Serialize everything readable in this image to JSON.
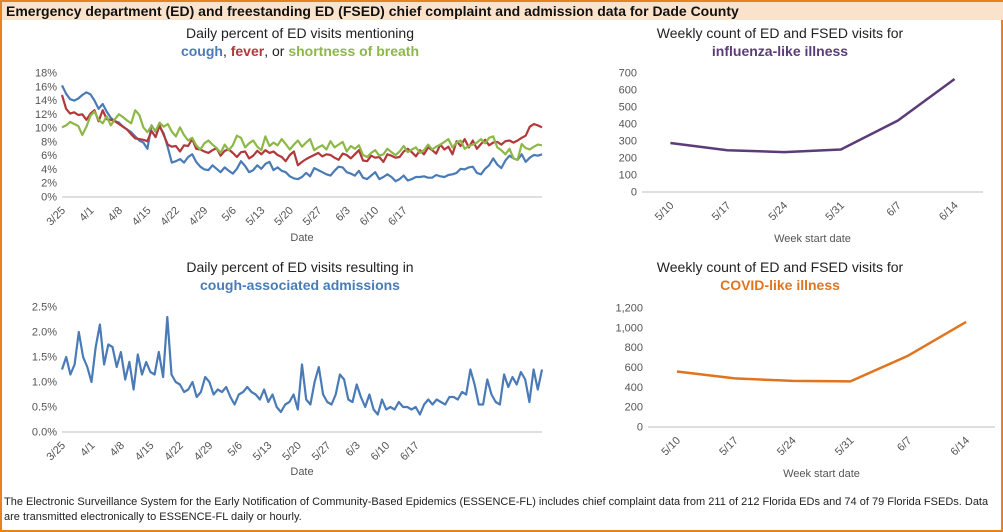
{
  "header": {
    "title": "Emergency department (ED) and freestanding ED (FSED) chief complaint and admission data for Dade County"
  },
  "colors": {
    "accent_border": "#e8821f",
    "header_bg": "#fbe3cb",
    "cough": "#4a7bb7",
    "fever": "#b2383a",
    "sob": "#8db848",
    "influenza": "#5b3c78",
    "covid": "#e1741f"
  },
  "footer": {
    "text": "The Electronic Surveillance System for the Early Notification of Community-Based Epidemics (ESSENCE-FL) includes chief complaint data from 211 of 212 Florida EDs and 74 of 79 Florida FSEDs. Data are transmitted electronically to ESSENCE-FL daily or hourly."
  },
  "chart_data": [
    {
      "type": "line",
      "title": "Daily percent of ED visits mentioning",
      "legend_title": {
        "cough": "cough",
        "sep1": ", ",
        "fever": "fever",
        "sep2": ", or ",
        "sob": "shortness of breath"
      },
      "xlabel": "Date",
      "ylabel": "",
      "x_tick_labels": [
        "3/25",
        "4/1",
        "4/8",
        "4/15",
        "4/22",
        "4/29",
        "5/6",
        "5/13",
        "5/20",
        "5/27",
        "6/3",
        "6/10",
        "6/17"
      ],
      "y_tick_labels": [
        "0%",
        "2%",
        "4%",
        "6%",
        "8%",
        "10%",
        "12%",
        "14%",
        "16%",
        "18%"
      ],
      "ylim": [
        0,
        18
      ],
      "series": [
        {
          "name": "cough",
          "color": "#4a7bb7",
          "values": [
            16.2,
            15.0,
            14.2,
            14.0,
            14.3,
            14.8,
            15.2,
            14.9,
            14.0,
            12.8,
            13.5,
            12.4,
            11.5,
            11.0,
            10.8,
            10.2,
            9.8,
            9.4,
            8.8,
            8.2,
            7.9,
            7.0,
            10.4,
            9.5,
            10.2,
            9.2,
            7.2,
            5.0,
            5.2,
            5.5,
            5.0,
            5.8,
            6.2,
            5.1,
            4.4,
            4.0,
            3.9,
            4.6,
            4.1,
            3.6,
            4.3,
            3.8,
            3.4,
            4.1,
            5.2,
            4.5,
            3.6,
            3.9,
            4.6,
            4.1,
            4.8,
            5.1,
            3.9,
            4.3,
            3.8,
            3.6,
            3.0,
            2.7,
            2.6,
            2.9,
            3.5,
            3.0,
            4.2,
            3.9,
            3.6,
            3.3,
            3.1,
            3.8,
            4.4,
            4.3,
            3.6,
            3.4,
            3.1,
            3.8,
            2.8,
            2.6,
            3.1,
            3.6,
            2.6,
            2.9,
            3.3,
            2.9,
            2.3,
            2.6,
            3.1,
            2.4,
            2.6,
            2.9,
            2.9,
            3.0,
            2.8,
            2.8,
            3.2,
            3.0,
            2.9,
            3.2,
            3.3,
            3.5,
            4.1,
            4.0,
            4.3,
            4.4,
            3.5,
            3.3,
            4.1,
            4.6,
            5.6,
            4.7,
            4.2,
            5.3,
            6.0,
            5.6,
            5.4,
            6.2,
            5.1,
            5.7,
            6.1,
            6.0,
            6.2
          ]
        },
        {
          "name": "fever",
          "color": "#b2383a",
          "values": [
            14.8,
            12.8,
            12.1,
            12.3,
            11.9,
            12.0,
            11.2,
            12.1,
            12.6,
            11.0,
            12.6,
            11.3,
            11.2,
            11.0,
            10.6,
            10.2,
            9.8,
            9.1,
            8.5,
            8.4,
            8.3,
            8.1,
            9.6,
            8.7,
            10.4,
            9.0,
            7.6,
            7.3,
            7.4,
            6.6,
            7.5,
            7.4,
            8.4,
            7.0,
            6.9,
            6.6,
            6.4,
            6.8,
            7.1,
            6.0,
            6.7,
            6.9,
            6.4,
            5.8,
            6.5,
            6.6,
            5.6,
            6.0,
            6.7,
            6.2,
            6.8,
            6.4,
            6.6,
            6.1,
            5.8,
            5.2,
            6.1,
            6.6,
            4.6,
            5.1,
            5.5,
            5.8,
            6.1,
            6.4,
            5.9,
            6.2,
            6.1,
            5.7,
            5.4,
            6.3,
            6.1,
            5.6,
            6.2,
            6.8,
            5.3,
            5.2,
            6.0,
            5.7,
            5.8,
            5.1,
            6.2,
            6.0,
            5.7,
            5.8,
            6.6,
            7.0,
            6.5,
            5.9,
            6.8,
            6.2,
            7.2,
            6.8,
            6.3,
            7.6,
            6.9,
            7.3,
            6.2,
            8.1,
            7.4,
            8.4,
            7.2,
            8.2,
            7.0,
            7.7,
            8.3,
            7.5,
            7.9,
            8.0,
            7.6,
            8.1,
            8.2,
            7.9,
            8.2,
            8.6,
            8.9,
            10.2,
            10.6,
            10.4,
            10.1
          ]
        },
        {
          "name": "shortness of breath",
          "color": "#8db848",
          "values": [
            10.1,
            10.4,
            10.9,
            10.6,
            10.3,
            9.0,
            10.2,
            11.8,
            12.4,
            11.2,
            10.7,
            11.7,
            10.4,
            11.3,
            12.0,
            11.6,
            11.1,
            10.7,
            12.6,
            11.9,
            10.1,
            9.4,
            10.3,
            9.6,
            10.8,
            10.2,
            10.6,
            9.5,
            8.8,
            10.1,
            9.0,
            8.2,
            8.6,
            7.5,
            6.9,
            7.8,
            8.2,
            7.6,
            7.1,
            6.4,
            7.6,
            6.8,
            7.5,
            8.9,
            8.6,
            7.2,
            7.8,
            8.2,
            7.3,
            6.8,
            8.8,
            7.4,
            7.9,
            7.5,
            8.4,
            7.7,
            6.9,
            7.6,
            8.2,
            7.3,
            7.9,
            8.4,
            6.8,
            7.2,
            7.5,
            6.9,
            8.1,
            7.2,
            7.6,
            8.0,
            6.6,
            7.4,
            7.0,
            7.5,
            6.1,
            5.8,
            6.4,
            6.8,
            6.0,
            6.2,
            7.0,
            6.5,
            6.1,
            6.6,
            7.4,
            6.5,
            6.9,
            7.2,
            6.4,
            6.8,
            7.6,
            6.9,
            7.3,
            7.6,
            8.0,
            8.4,
            7.2,
            7.9,
            8.2,
            7.0,
            7.4,
            7.6,
            7.9,
            8.4,
            7.8,
            8.6,
            8.8,
            7.2,
            6.8,
            6.2,
            7.0,
            5.6,
            5.4,
            7.7,
            7.1,
            6.9,
            7.3,
            7.6,
            7.5
          ]
        }
      ]
    },
    {
      "type": "line",
      "title": "Weekly count of ED and FSED visits for",
      "subtitle": "influenza-like illness",
      "xlabel": "Week start date",
      "ylabel": "",
      "categories": [
        "5/10",
        "5/17",
        "5/24",
        "5/31",
        "6/7",
        "6/14"
      ],
      "y_tick_labels": [
        "0",
        "100",
        "200",
        "300",
        "400",
        "500",
        "600",
        "700"
      ],
      "ylim": [
        0,
        700
      ],
      "series": [
        {
          "name": "influenza-like illness",
          "color": "#5b3c78",
          "values": [
            288,
            245,
            235,
            250,
            420,
            665
          ]
        }
      ]
    },
    {
      "type": "line",
      "title": "Daily percent of ED visits resulting in",
      "subtitle": "cough-associated admissions",
      "xlabel": "Date",
      "ylabel": "",
      "x_tick_labels": [
        "3/25",
        "4/1",
        "4/8",
        "4/15",
        "4/22",
        "4/29",
        "5/6",
        "5/13",
        "5/20",
        "5/27",
        "6/3",
        "6/10",
        "6/17"
      ],
      "y_tick_labels": [
        "0.0%",
        "0.5%",
        "1.0%",
        "1.5%",
        "2.0%",
        "2.5%"
      ],
      "ylim": [
        0,
        2.5
      ],
      "series": [
        {
          "name": "cough-associated admissions",
          "color": "#4a7bb7",
          "values": [
            1.25,
            1.5,
            1.15,
            1.35,
            2.0,
            1.5,
            1.3,
            1.0,
            1.7,
            2.15,
            1.35,
            1.75,
            1.7,
            1.3,
            1.6,
            1.05,
            1.4,
            0.85,
            1.55,
            1.15,
            1.4,
            1.2,
            1.15,
            1.6,
            1.1,
            2.3,
            1.15,
            1.0,
            0.95,
            0.8,
            0.85,
            1.0,
            0.7,
            0.8,
            1.1,
            1.0,
            0.75,
            0.85,
            0.8,
            0.9,
            0.7,
            0.55,
            0.75,
            0.8,
            0.9,
            0.8,
            0.75,
            0.65,
            0.85,
            0.6,
            0.75,
            0.5,
            0.4,
            0.55,
            0.6,
            0.75,
            0.45,
            1.35,
            0.65,
            0.55,
            1.0,
            1.3,
            0.75,
            0.6,
            0.55,
            0.75,
            1.15,
            1.05,
            0.65,
            0.6,
            0.95,
            0.7,
            0.5,
            0.75,
            0.45,
            0.35,
            0.65,
            0.45,
            0.5,
            0.45,
            0.6,
            0.5,
            0.5,
            0.45,
            0.5,
            0.35,
            0.55,
            0.65,
            0.55,
            0.65,
            0.6,
            0.55,
            0.7,
            0.7,
            0.65,
            0.8,
            0.75,
            1.25,
            0.95,
            0.55,
            0.55,
            1.05,
            0.75,
            0.6,
            0.55,
            1.15,
            0.9,
            1.1,
            0.95,
            1.2,
            1.05,
            0.6,
            1.25,
            0.85,
            1.25
          ]
        }
      ]
    },
    {
      "type": "line",
      "title": "Weekly count of ED and FSED visits for",
      "subtitle": "COVID-like illness",
      "xlabel": "Week start date",
      "ylabel": "",
      "categories": [
        "5/10",
        "5/17",
        "5/24",
        "5/31",
        "6/7",
        "6/14"
      ],
      "y_tick_labels": [
        "0",
        "200",
        "400",
        "600",
        "800",
        "1,000",
        "1,200"
      ],
      "ylim": [
        0,
        1200
      ],
      "series": [
        {
          "name": "COVID-like illness",
          "color": "#e1741f",
          "values": [
            560,
            490,
            465,
            460,
            720,
            1060
          ]
        }
      ]
    }
  ]
}
